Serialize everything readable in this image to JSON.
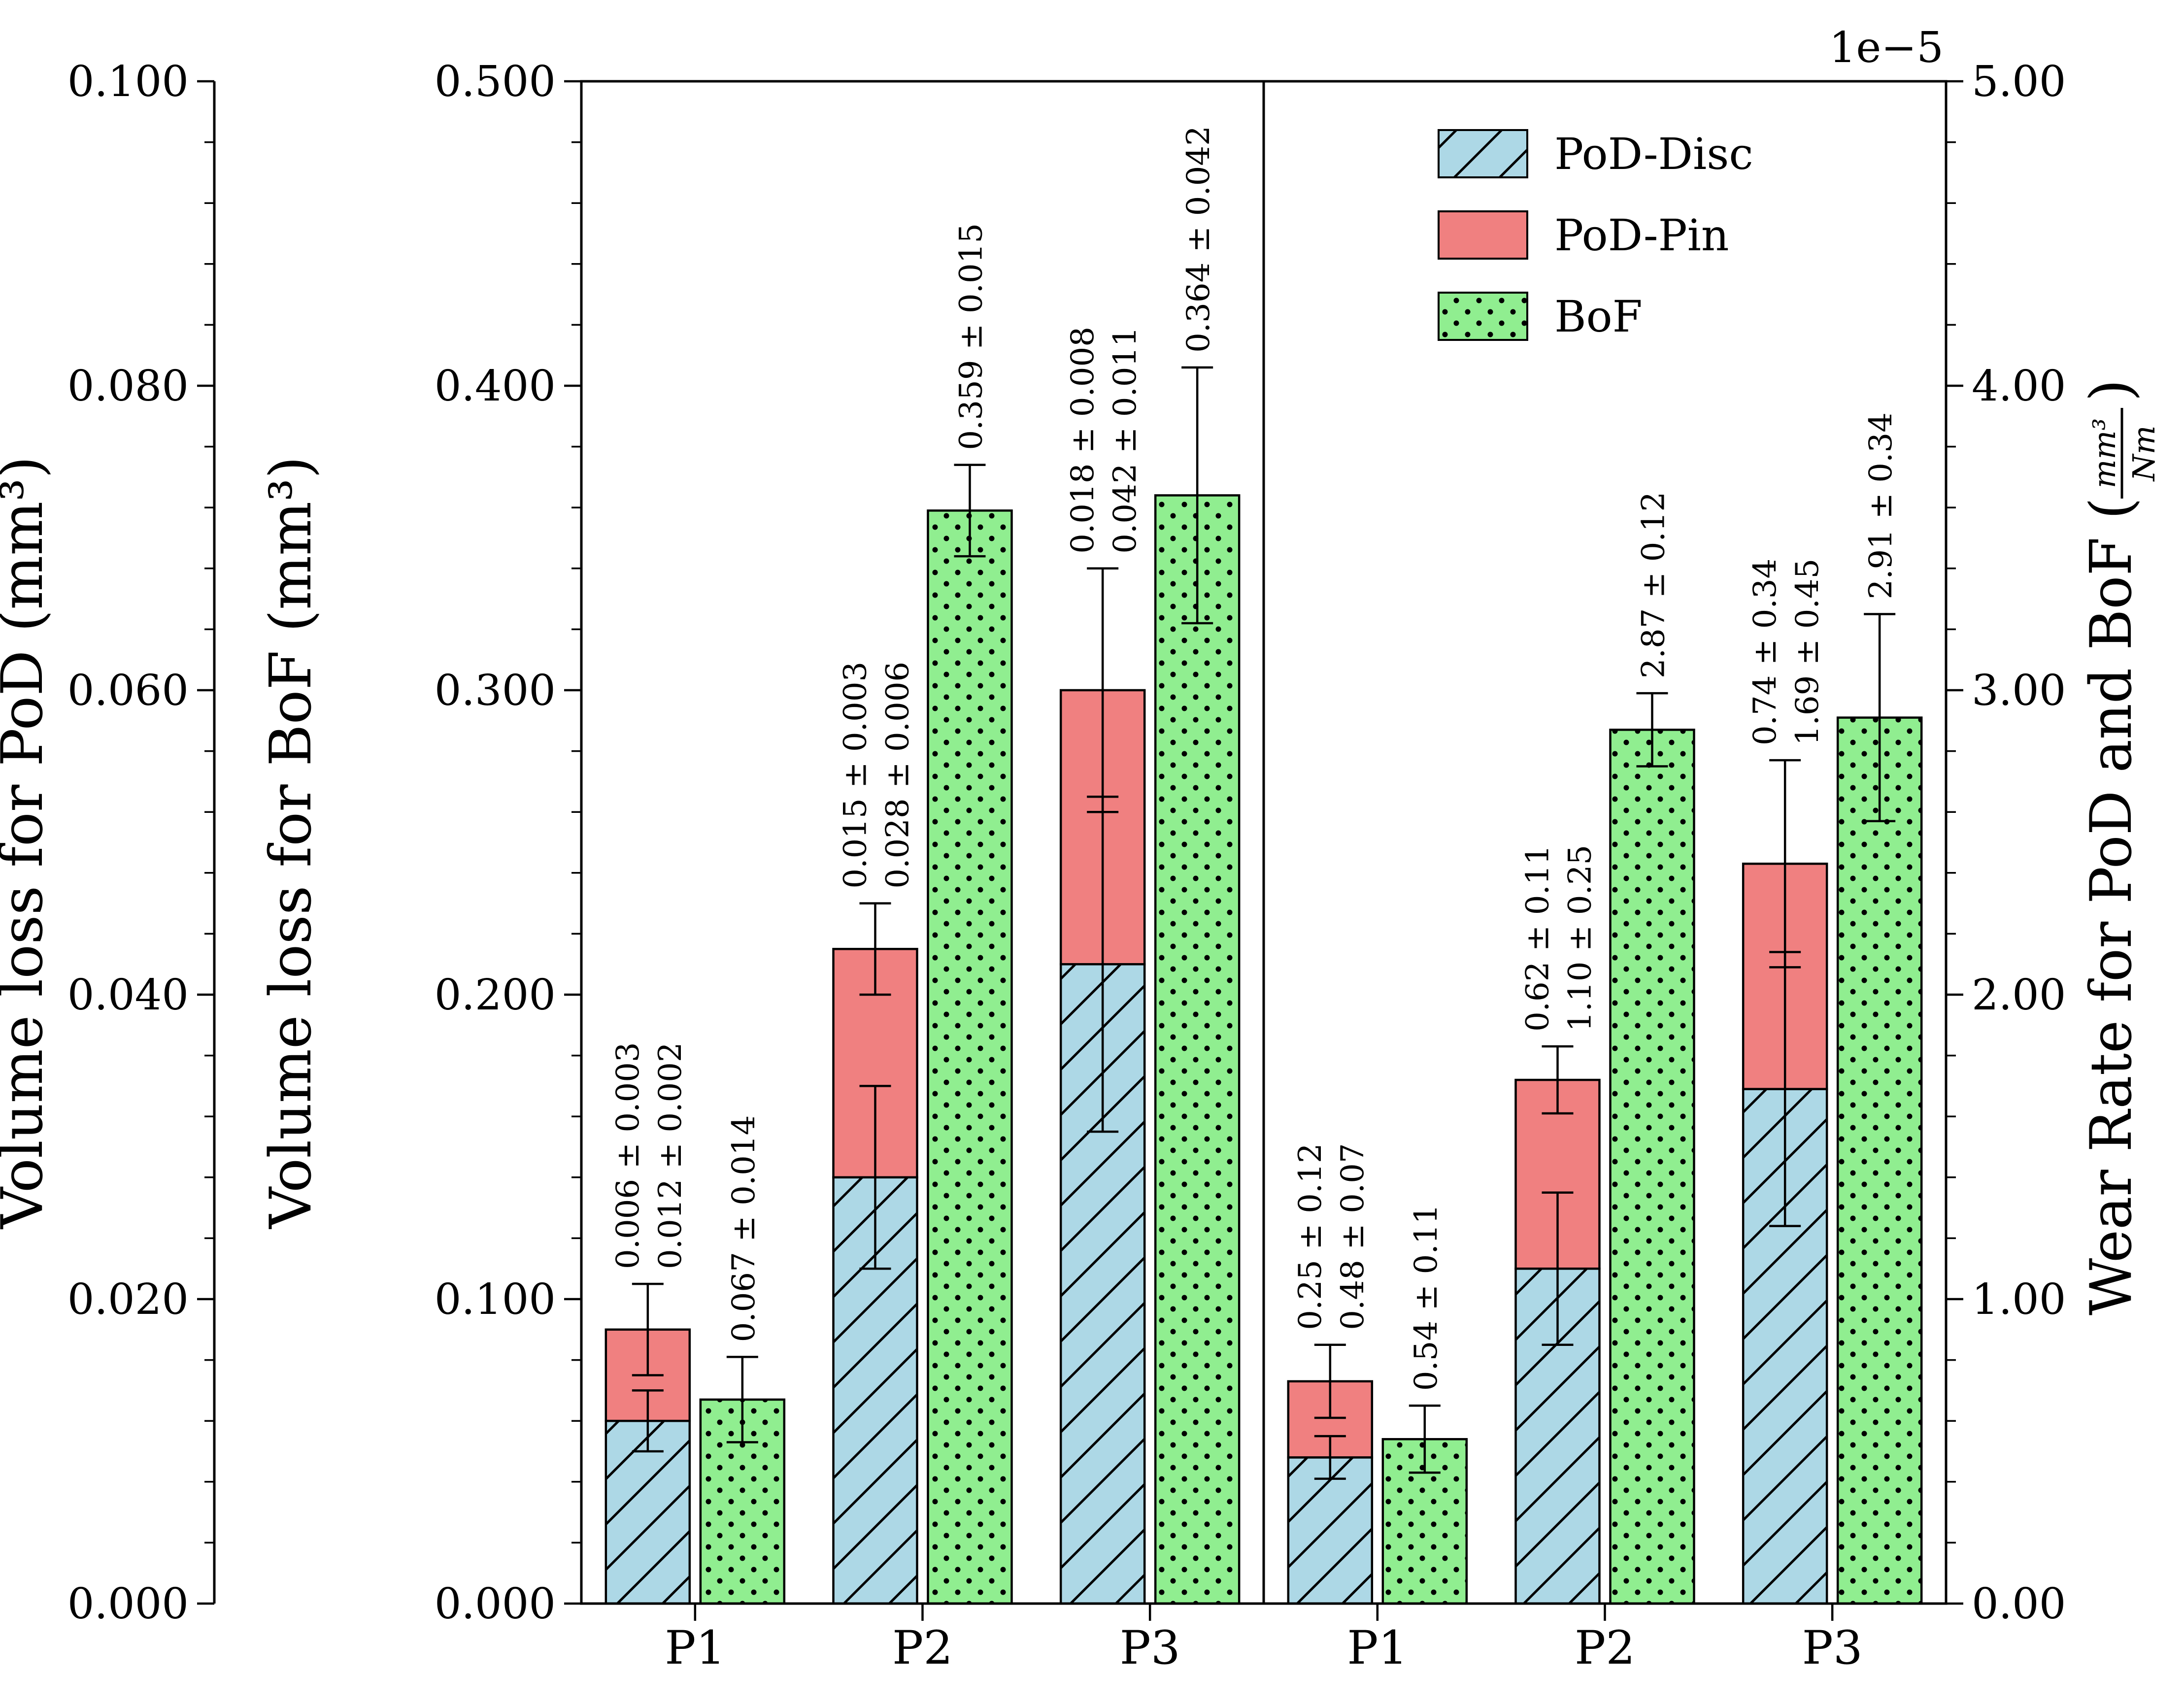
{
  "chart_data": {
    "type": "bar",
    "title": "",
    "offset_label": "1e−5",
    "grid": false,
    "legend_position": "upper area of right panel",
    "axes": {
      "pod": {
        "title": "Volume loss for PoD (mm³)",
        "range": [
          0,
          0.1
        ],
        "tick_labels": [
          "0.000",
          "0.020",
          "0.040",
          "0.060",
          "0.080",
          "0.100"
        ]
      },
      "bof": {
        "title": "Volume loss for BoF (mm³)",
        "range": [
          0,
          0.5
        ],
        "tick_labels": [
          "0.000",
          "0.100",
          "0.200",
          "0.300",
          "0.400",
          "0.500"
        ]
      },
      "wear": {
        "title_prefix": "Wear Rate for PoD and BoF (",
        "frac_num": "mm³",
        "frac_den": "Nm",
        "title_suffix": ")",
        "range": [
          0,
          5.0
        ],
        "scale": "1e−5",
        "tick_labels": [
          "0.00",
          "1.00",
          "2.00",
          "3.00",
          "4.00",
          "5.00"
        ]
      }
    },
    "colors": {
      "disc": "#ADD8E6",
      "pin": "#F08080",
      "bof": "#90EE90",
      "edge": "#000000"
    },
    "legend": [
      {
        "label": "PoD-Disc",
        "style": "disc",
        "pattern": "diagonal-hatch"
      },
      {
        "label": "PoD-Pin",
        "style": "pin",
        "pattern": "solid"
      },
      {
        "label": "BoF",
        "style": "bof",
        "pattern": "dots"
      }
    ],
    "panels": [
      {
        "name": "volume-loss",
        "categories": [
          "P1",
          "P2",
          "P3"
        ],
        "plot_axis_max": 0.5,
        "pod_value_scale": 5,
        "series": [
          {
            "name": "PoD-Disc",
            "role": "disc",
            "values": [
              0.012,
              0.028,
              0.042
            ],
            "errors": [
              0.002,
              0.006,
              0.011
            ]
          },
          {
            "name": "PoD-Pin",
            "role": "pin",
            "values": [
              0.006,
              0.015,
              0.018
            ],
            "errors": [
              0.003,
              0.003,
              0.008
            ]
          },
          {
            "name": "BoF",
            "role": "bof",
            "values": [
              0.067,
              0.359,
              0.364
            ],
            "errors": [
              0.014,
              0.015,
              0.042
            ]
          }
        ],
        "annotations": {
          "pin": [
            "0.006 ± 0.003",
            "0.015 ± 0.003",
            "0.018 ± 0.008"
          ],
          "disc": [
            "0.012 ± 0.002",
            "0.028 ± 0.006",
            "0.042 ± 0.011"
          ],
          "bof": [
            "0.067 ± 0.014",
            "0.359 ± 0.015",
            "0.364 ± 0.042"
          ]
        }
      },
      {
        "name": "wear-rate",
        "categories": [
          "P1",
          "P2",
          "P3"
        ],
        "plot_axis_max": 5.0,
        "pod_value_scale": 1,
        "series": [
          {
            "name": "PoD-Disc",
            "role": "disc",
            "values": [
              0.48,
              1.1,
              1.69
            ],
            "errors": [
              0.07,
              0.25,
              0.45
            ]
          },
          {
            "name": "PoD-Pin",
            "role": "pin",
            "values": [
              0.25,
              0.62,
              0.74
            ],
            "errors": [
              0.12,
              0.11,
              0.34
            ]
          },
          {
            "name": "BoF",
            "role": "bof",
            "values": [
              0.54,
              2.87,
              2.91
            ],
            "errors": [
              0.11,
              0.12,
              0.34
            ]
          }
        ],
        "annotations": {
          "pin": [
            "0.25 ± 0.12",
            "0.62 ± 0.11",
            "0.74 ± 0.34"
          ],
          "disc": [
            "0.48 ± 0.07",
            "1.10 ± 0.25",
            "1.69 ± 0.45"
          ],
          "bof": [
            "0.54 ± 0.11",
            "2.87 ± 0.12",
            "2.91 ± 0.34"
          ]
        }
      }
    ]
  }
}
